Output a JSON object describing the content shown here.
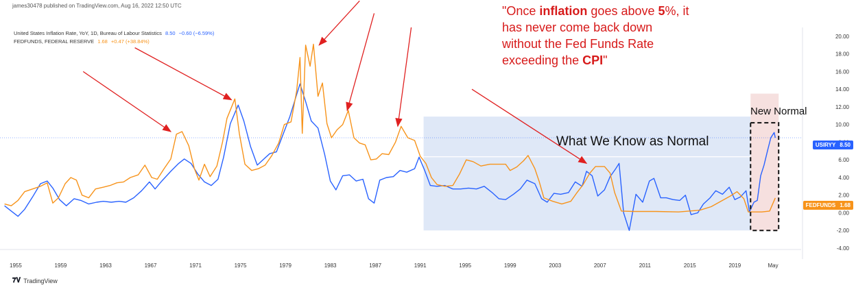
{
  "header": {
    "publisher": "james30478 published on TradingView.com, Aug 16, 2022 12:50 UTC"
  },
  "legend": [
    {
      "name": "United States Inflation Rate, YoY, 1D, Bureau of Labour Statistics",
      "last": "8.50",
      "change": "−0.60 (−6.59%)",
      "color": "#2962ff"
    },
    {
      "name": "FEDFUNDS, FEDERAL RESERVE",
      "last": "1.68",
      "change": "+0.47 (+38.84%)",
      "color": "#f7931a"
    }
  ],
  "annotations": {
    "quote_prefix": "\"Once ",
    "quote_bold1": "inflation",
    "quote_mid1": " goes above ",
    "quote_bold2": "5",
    "quote_mid2": "%, it has never come back down without the Fed Funds Rate exceeding the ",
    "quote_bold3": "CPI",
    "quote_suffix": "\"",
    "normal_label": "What We Know as Normal",
    "new_normal_label": "New Normal"
  },
  "badges": {
    "usiryy_label": "USIRYY",
    "usiryy_value": "8.50",
    "fedfunds_label": "FEDFUNDS",
    "fedfunds_value": "1.68"
  },
  "footer": {
    "brand": "TradingView"
  },
  "colors": {
    "inflation": "#2962ff",
    "fedfunds": "#f7931a",
    "arrow": "#e02020",
    "normal_box": "#dfe8f7",
    "new_normal_box": "#f6e0df"
  },
  "chart_data": {
    "type": "line",
    "x_tick_labels": [
      "1955",
      "1959",
      "1963",
      "1967",
      "1971",
      "1975",
      "1979",
      "1983",
      "1987",
      "1991",
      "1995",
      "1999",
      "2003",
      "2007",
      "2011",
      "2015",
      "2019",
      "May"
    ],
    "y_tick_labels": [
      "-4.00",
      "-2.00",
      "0.00",
      "2.00",
      "4.00",
      "6.00",
      "8.00",
      "10.00",
      "12.00",
      "14.00",
      "16.00",
      "18.00",
      "20.00"
    ],
    "ylim": [
      -4,
      21
    ],
    "xlim": [
      1953.6,
      2024.9
    ],
    "series": [
      {
        "name": "USIRYY",
        "color": "#2962ff",
        "points": [
          [
            1954.0,
            0.8
          ],
          [
            1954.6,
            0.2
          ],
          [
            1955.2,
            -0.4
          ],
          [
            1955.8,
            0.4
          ],
          [
            1956.5,
            1.8
          ],
          [
            1957.2,
            3.3
          ],
          [
            1957.8,
            3.6
          ],
          [
            1958.3,
            2.8
          ],
          [
            1958.9,
            1.5
          ],
          [
            1959.5,
            0.8
          ],
          [
            1960.2,
            1.6
          ],
          [
            1960.8,
            1.4
          ],
          [
            1961.5,
            1.0
          ],
          [
            1962.2,
            1.2
          ],
          [
            1962.8,
            1.3
          ],
          [
            1963.5,
            1.2
          ],
          [
            1964.2,
            1.3
          ],
          [
            1964.8,
            1.2
          ],
          [
            1965.5,
            1.7
          ],
          [
            1966.2,
            2.5
          ],
          [
            1966.9,
            3.5
          ],
          [
            1967.4,
            2.7
          ],
          [
            1968.0,
            3.6
          ],
          [
            1968.8,
            4.7
          ],
          [
            1969.5,
            5.6
          ],
          [
            1970.0,
            6.1
          ],
          [
            1970.6,
            5.6
          ],
          [
            1971.2,
            4.4
          ],
          [
            1971.8,
            3.5
          ],
          [
            1972.4,
            3.1
          ],
          [
            1973.0,
            3.8
          ],
          [
            1973.5,
            6.3
          ],
          [
            1974.1,
            10.1
          ],
          [
            1974.8,
            12.2
          ],
          [
            1975.3,
            10.4
          ],
          [
            1975.9,
            7.5
          ],
          [
            1976.5,
            5.4
          ],
          [
            1977.0,
            6.0
          ],
          [
            1977.6,
            6.7
          ],
          [
            1978.2,
            6.9
          ],
          [
            1978.8,
            8.9
          ],
          [
            1979.4,
            10.9
          ],
          [
            1980.0,
            13.4
          ],
          [
            1980.3,
            14.6
          ],
          [
            1980.8,
            12.6
          ],
          [
            1981.3,
            10.4
          ],
          [
            1981.9,
            9.6
          ],
          [
            1982.5,
            6.6
          ],
          [
            1983.0,
            3.6
          ],
          [
            1983.5,
            2.6
          ],
          [
            1984.1,
            4.2
          ],
          [
            1984.7,
            4.3
          ],
          [
            1985.3,
            3.6
          ],
          [
            1985.9,
            3.8
          ],
          [
            1986.4,
            1.6
          ],
          [
            1986.9,
            1.1
          ],
          [
            1987.4,
            3.7
          ],
          [
            1988.0,
            4.0
          ],
          [
            1988.6,
            4.1
          ],
          [
            1989.2,
            4.8
          ],
          [
            1989.8,
            4.6
          ],
          [
            1990.5,
            5.0
          ],
          [
            1990.9,
            6.3
          ],
          [
            1991.4,
            4.8
          ],
          [
            1991.9,
            3.1
          ],
          [
            1992.5,
            3.0
          ],
          [
            1993.2,
            3.1
          ],
          [
            1993.9,
            2.7
          ],
          [
            1994.6,
            2.7
          ],
          [
            1995.3,
            2.8
          ],
          [
            1996.0,
            2.7
          ],
          [
            1996.7,
            3.0
          ],
          [
            1997.4,
            2.3
          ],
          [
            1998.0,
            1.6
          ],
          [
            1998.6,
            1.5
          ],
          [
            1999.3,
            2.1
          ],
          [
            1999.9,
            2.7
          ],
          [
            2000.5,
            3.7
          ],
          [
            2001.2,
            3.3
          ],
          [
            2001.8,
            1.6
          ],
          [
            2002.3,
            1.2
          ],
          [
            2002.9,
            2.2
          ],
          [
            2003.5,
            2.1
          ],
          [
            2004.2,
            2.3
          ],
          [
            2004.8,
            3.5
          ],
          [
            2005.4,
            3.0
          ],
          [
            2005.8,
            4.7
          ],
          [
            2006.3,
            4.2
          ],
          [
            2006.8,
            1.9
          ],
          [
            2007.4,
            2.6
          ],
          [
            2007.9,
            4.1
          ],
          [
            2008.4,
            5.0
          ],
          [
            2008.7,
            5.6
          ],
          [
            2009.1,
            0.0
          ],
          [
            2009.6,
            -2.0
          ],
          [
            2010.2,
            2.1
          ],
          [
            2010.8,
            1.2
          ],
          [
            2011.4,
            3.6
          ],
          [
            2011.8,
            3.9
          ],
          [
            2012.4,
            1.7
          ],
          [
            2012.9,
            1.7
          ],
          [
            2013.5,
            1.5
          ],
          [
            2014.1,
            1.4
          ],
          [
            2014.6,
            2.0
          ],
          [
            2015.1,
            -0.2
          ],
          [
            2015.7,
            0.0
          ],
          [
            2016.2,
            1.0
          ],
          [
            2016.8,
            1.7
          ],
          [
            2017.3,
            2.5
          ],
          [
            2017.9,
            2.1
          ],
          [
            2018.5,
            2.9
          ],
          [
            2019.0,
            1.5
          ],
          [
            2019.5,
            1.8
          ],
          [
            2020.0,
            2.5
          ],
          [
            2020.3,
            0.1
          ],
          [
            2020.7,
            1.2
          ],
          [
            2021.0,
            1.4
          ],
          [
            2021.3,
            4.2
          ],
          [
            2021.6,
            5.4
          ],
          [
            2021.9,
            7.0
          ],
          [
            2022.2,
            8.5
          ],
          [
            2022.5,
            9.1
          ],
          [
            2022.6,
            8.5
          ]
        ]
      },
      {
        "name": "FEDFUNDS",
        "color": "#f7931a",
        "points": [
          [
            1954.0,
            1.0
          ],
          [
            1954.6,
            0.8
          ],
          [
            1955.2,
            1.4
          ],
          [
            1955.8,
            2.4
          ],
          [
            1956.5,
            2.7
          ],
          [
            1957.2,
            3.0
          ],
          [
            1957.8,
            3.4
          ],
          [
            1958.3,
            1.1
          ],
          [
            1958.8,
            1.7
          ],
          [
            1959.4,
            3.3
          ],
          [
            1959.9,
            4.0
          ],
          [
            1960.4,
            3.7
          ],
          [
            1960.9,
            2.0
          ],
          [
            1961.5,
            1.7
          ],
          [
            1962.1,
            2.7
          ],
          [
            1962.8,
            2.9
          ],
          [
            1963.4,
            3.1
          ],
          [
            1964.0,
            3.4
          ],
          [
            1964.6,
            3.5
          ],
          [
            1965.2,
            4.0
          ],
          [
            1965.9,
            4.3
          ],
          [
            1966.5,
            5.4
          ],
          [
            1967.1,
            4.0
          ],
          [
            1967.6,
            3.8
          ],
          [
            1968.2,
            5.0
          ],
          [
            1968.8,
            6.1
          ],
          [
            1969.3,
            8.9
          ],
          [
            1969.8,
            9.2
          ],
          [
            1970.4,
            7.6
          ],
          [
            1970.9,
            5.0
          ],
          [
            1971.3,
            3.7
          ],
          [
            1971.8,
            5.5
          ],
          [
            1972.3,
            4.1
          ],
          [
            1972.9,
            5.3
          ],
          [
            1973.4,
            8.0
          ],
          [
            1973.8,
            10.7
          ],
          [
            1974.5,
            12.9
          ],
          [
            1974.9,
            9.0
          ],
          [
            1975.4,
            5.5
          ],
          [
            1976.0,
            4.8
          ],
          [
            1976.6,
            5.0
          ],
          [
            1977.2,
            5.4
          ],
          [
            1977.8,
            6.5
          ],
          [
            1978.4,
            7.9
          ],
          [
            1978.9,
            10.0
          ],
          [
            1979.5,
            10.3
          ],
          [
            1980.0,
            13.8
          ],
          [
            1980.3,
            17.6
          ],
          [
            1980.5,
            9.0
          ],
          [
            1980.8,
            19.0
          ],
          [
            1981.2,
            16.6
          ],
          [
            1981.5,
            19.1
          ],
          [
            1981.9,
            13.2
          ],
          [
            1982.3,
            14.7
          ],
          [
            1982.7,
            10.1
          ],
          [
            1983.1,
            8.5
          ],
          [
            1983.6,
            9.4
          ],
          [
            1984.1,
            10.0
          ],
          [
            1984.6,
            11.6
          ],
          [
            1985.1,
            8.5
          ],
          [
            1985.6,
            7.9
          ],
          [
            1986.1,
            7.7
          ],
          [
            1986.6,
            6.0
          ],
          [
            1987.1,
            6.1
          ],
          [
            1987.6,
            6.7
          ],
          [
            1988.2,
            6.6
          ],
          [
            1988.8,
            8.0
          ],
          [
            1989.3,
            9.8
          ],
          [
            1989.9,
            8.5
          ],
          [
            1990.5,
            8.2
          ],
          [
            1991.0,
            6.4
          ],
          [
            1991.5,
            5.6
          ],
          [
            1992.0,
            4.0
          ],
          [
            1992.5,
            3.2
          ],
          [
            1993.2,
            3.0
          ],
          [
            1993.9,
            3.1
          ],
          [
            1994.5,
            4.4
          ],
          [
            1995.1,
            6.0
          ],
          [
            1995.7,
            5.8
          ],
          [
            1996.4,
            5.3
          ],
          [
            1997.2,
            5.5
          ],
          [
            1997.9,
            5.5
          ],
          [
            1998.6,
            5.5
          ],
          [
            1999.0,
            4.8
          ],
          [
            1999.6,
            5.2
          ],
          [
            2000.2,
            5.9
          ],
          [
            2000.6,
            6.5
          ],
          [
            2001.2,
            5.0
          ],
          [
            2001.6,
            3.5
          ],
          [
            2002.0,
            1.7
          ],
          [
            2002.8,
            1.3
          ],
          [
            2003.6,
            1.0
          ],
          [
            2004.4,
            1.3
          ],
          [
            2004.9,
            2.2
          ],
          [
            2005.5,
            3.2
          ],
          [
            2006.1,
            4.5
          ],
          [
            2006.6,
            5.25
          ],
          [
            2007.4,
            5.25
          ],
          [
            2007.9,
            4.5
          ],
          [
            2008.3,
            2.3
          ],
          [
            2008.9,
            0.2
          ],
          [
            2010.0,
            0.15
          ],
          [
            2012.0,
            0.15
          ],
          [
            2014.0,
            0.1
          ],
          [
            2015.9,
            0.3
          ],
          [
            2016.9,
            0.7
          ],
          [
            2017.9,
            1.4
          ],
          [
            2018.6,
            1.9
          ],
          [
            2019.2,
            2.4
          ],
          [
            2019.8,
            1.6
          ],
          [
            2020.2,
            0.1
          ],
          [
            2021.4,
            0.1
          ],
          [
            2022.1,
            0.2
          ],
          [
            2022.3,
            0.8
          ],
          [
            2022.6,
            1.68
          ]
        ]
      }
    ],
    "reference_line": 8.5,
    "regions": [
      {
        "x": [
          1991.3,
          2020.4
        ],
        "y": [
          6.4,
          10.9
        ]
      },
      {
        "x": [
          1991.3,
          2020.4
        ],
        "y": [
          -2.0,
          6.3
        ]
      },
      {
        "x": [
          2020.4,
          2022.9
        ],
        "y": [
          -2.0,
          13.5
        ]
      }
    ],
    "arrows": [
      [
        [
          1961.0,
          16.0
        ],
        [
          1968.8,
          9.2
        ]
      ],
      [
        [
          1965.6,
          18.7
        ],
        [
          1974.2,
          12.8
        ]
      ],
      [
        [
          1985.6,
          24.0
        ],
        [
          1982.0,
          19.0
        ]
      ],
      [
        [
          1986.9,
          22.6
        ],
        [
          1984.5,
          11.6
        ]
      ],
      [
        [
          1990.2,
          21.0
        ],
        [
          1989.0,
          9.8
        ]
      ],
      [
        [
          1995.6,
          14.0
        ],
        [
          2005.8,
          5.6
        ]
      ]
    ]
  }
}
